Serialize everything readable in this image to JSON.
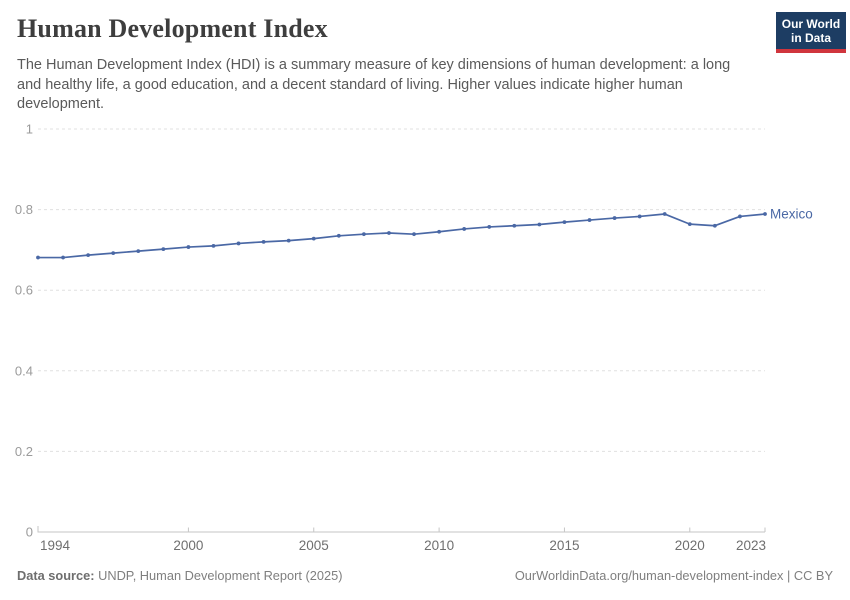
{
  "header": {
    "title": "Human Development Index",
    "subtitle_lines": [
      "The Human Development Index (HDI) is a summary measure of key dimensions of human development: a long",
      "and healthy life, a good education, and a decent standard of living. Higher values indicate higher human",
      "development."
    ],
    "logo": {
      "line1": "Our World",
      "line2": "in Data",
      "bg_color": "#1d3d63",
      "bar_color": "#d0353d"
    }
  },
  "chart_data": {
    "type": "line",
    "title": "Human Development Index",
    "entity": "Mexico",
    "x": [
      1994,
      1995,
      1996,
      1997,
      1998,
      1999,
      2000,
      2001,
      2002,
      2003,
      2004,
      2005,
      2006,
      2007,
      2008,
      2009,
      2010,
      2011,
      2012,
      2013,
      2014,
      2015,
      2016,
      2017,
      2018,
      2019,
      2020,
      2021,
      2022,
      2023
    ],
    "values": [
      0.681,
      0.681,
      0.687,
      0.692,
      0.697,
      0.702,
      0.707,
      0.71,
      0.716,
      0.72,
      0.723,
      0.728,
      0.735,
      0.739,
      0.742,
      0.739,
      0.745,
      0.752,
      0.757,
      0.76,
      0.763,
      0.769,
      0.774,
      0.779,
      0.783,
      0.789,
      0.764,
      0.76,
      0.783,
      0.789
    ],
    "xlabel": "",
    "ylabel": "",
    "ylim": [
      0,
      1
    ],
    "yticks": [
      0,
      0.2,
      0.4,
      0.6,
      0.8,
      1
    ],
    "ytick_labels": [
      "0",
      "0.2",
      "0.4",
      "0.6",
      "0.8",
      "1"
    ],
    "xticks": [
      1994,
      2000,
      2005,
      2010,
      2015,
      2020,
      2023
    ],
    "xtick_labels": [
      "1994",
      "2000",
      "2005",
      "2010",
      "2015",
      "2020",
      "2023"
    ],
    "grid": "horizontal-dashed",
    "legend_position": "end-of-line-label",
    "style": {
      "line_color": "#4a68a5",
      "entity_label_color": "#4a68a5",
      "grid_color": "#e0e0e0",
      "axis_color": "#c6c6c6",
      "ytick_label_color": "#9b9b9b",
      "xtick_label_color": "#6f6f6f"
    }
  },
  "footer": {
    "source_label": "Data source:",
    "source_text": " UNDP, Human Development Report (2025)",
    "credit": "OurWorldinData.org/human-development-index | CC BY"
  }
}
